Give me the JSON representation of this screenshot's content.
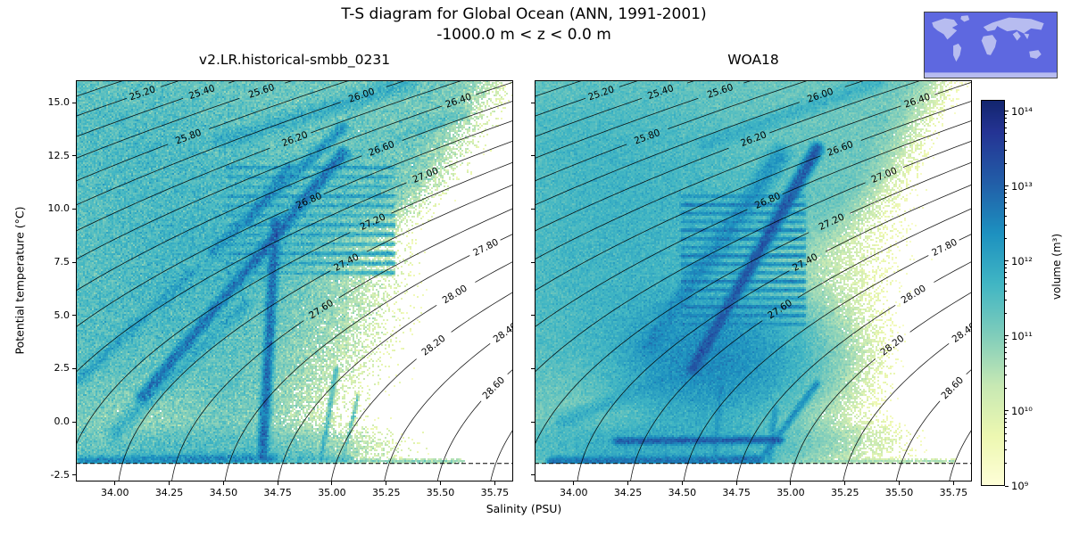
{
  "figure": {
    "title": "T-S diagram for Global Ocean (ANN, 1991-2001)",
    "subtitle": "-1000.0 m < z < 0.0 m"
  },
  "chart_data": {
    "type": "heatmap",
    "subtype": "T-S (temperature-salinity) volumetric census: 2D histogram of ocean volume in salinity/temperature space on a log color scale, with potential-density (sigma-0) contours and a freezing-point dashed line",
    "xlabel": "Salinity (PSU)",
    "ylabel": "Potential temperature (°C)",
    "xlim": [
      33.82,
      35.835
    ],
    "ylim": [
      -2.8,
      16.05
    ],
    "xticks": [
      34.0,
      34.25,
      34.5,
      34.75,
      35.0,
      35.25,
      35.5,
      35.75
    ],
    "xtick_labels": [
      "34.00",
      "34.25",
      "34.50",
      "34.75",
      "35.00",
      "35.25",
      "35.50",
      "35.75"
    ],
    "yticks": [
      -2.5,
      0.0,
      2.5,
      5.0,
      7.5,
      10.0,
      12.5,
      15.0
    ],
    "ytick_labels": [
      "-2.5",
      "0.0",
      "2.5",
      "5.0",
      "7.5",
      "10.0",
      "12.5",
      "15.0"
    ],
    "freezing_line_T": -1.95,
    "density_contours": {
      "levels_min": 24.4,
      "levels_max": 29.0,
      "step": 0.2,
      "labels": [
        {
          "label": "25.20",
          "level": 25.2,
          "t": 15.45
        },
        {
          "label": "25.40",
          "level": 25.4,
          "t": 15.5
        },
        {
          "label": "25.60",
          "level": 25.6,
          "t": 15.55
        },
        {
          "label": "25.80",
          "level": 25.8,
          "t": 13.4
        },
        {
          "label": "26.00",
          "level": 26.0,
          "t": 15.35
        },
        {
          "label": "26.20",
          "level": 26.2,
          "t": 13.3
        },
        {
          "label": "26.40",
          "level": 26.4,
          "t": 15.1
        },
        {
          "label": "26.60",
          "level": 26.6,
          "t": 12.85
        },
        {
          "label": "26.80",
          "level": 26.8,
          "t": 10.4
        },
        {
          "label": "27.00",
          "level": 27.0,
          "t": 11.6
        },
        {
          "label": "27.20",
          "level": 27.2,
          "t": 9.4
        },
        {
          "label": "27.40",
          "level": 27.4,
          "t": 7.5
        },
        {
          "label": "27.60",
          "level": 27.6,
          "t": 5.3
        },
        {
          "label": "27.80",
          "level": 27.8,
          "t": 8.2
        },
        {
          "label": "28.00",
          "level": 28.0,
          "t": 6.0
        },
        {
          "label": "28.20",
          "level": 28.2,
          "t": 3.6
        },
        {
          "label": "28.40",
          "level": 28.4,
          "t": 4.2
        },
        {
          "label": "28.60",
          "level": 28.6,
          "t": 1.6
        }
      ]
    },
    "colorbar": {
      "label": "volume (m³)",
      "scale": "log",
      "tick_labels": [
        "10⁹",
        "10¹⁰",
        "10¹¹",
        "10¹²",
        "10¹³",
        "10¹⁴"
      ],
      "log_min": 9,
      "log_max": 14.15,
      "colormap": [
        "#ffffd9",
        "#edf8b1",
        "#c7e9b4",
        "#7fcdbb",
        "#41b6c4",
        "#1d91c0",
        "#225ea8",
        "#253494",
        "#081d58"
      ]
    },
    "inset_map": {
      "ocean": "#5e68e0",
      "land": "#b7bcf0"
    },
    "panels": [
      {
        "title": "v2.LR.historical-smbb_0231",
        "seed": 7,
        "noise": 1.1,
        "sparsity": 2.2,
        "edge": {
          "e0": 34.62,
          "slope": 0.055,
          "soft": 0.22
        },
        "blobs": [
          {
            "s": 34.25,
            "t": 10.5,
            "rs": 0.5,
            "rt": 4.5,
            "a": 11.25
          },
          {
            "s": 34.15,
            "t": 4.0,
            "rs": 0.55,
            "rt": 3.5,
            "a": 11.2
          },
          {
            "s": 34.55,
            "t": 7.5,
            "rs": 0.38,
            "rt": 3.5,
            "a": 11.35
          },
          {
            "s": 34.0,
            "t": 13.5,
            "rs": 0.45,
            "rt": 2.2,
            "a": 11.0
          },
          {
            "s": 34.35,
            "t": -1.2,
            "rs": 0.5,
            "rt": 0.8,
            "a": 11.45
          }
        ],
        "ridges": [
          {
            "s1": 34.13,
            "t1": 1.2,
            "s2": 35.05,
            "t2": 12.6,
            "a": 12.7,
            "w": 5
          },
          {
            "s1": 34.68,
            "t1": -1.6,
            "s2": 34.74,
            "t2": 9.4,
            "a": 12.8,
            "w": 4
          },
          {
            "s1": 34.45,
            "t1": 8.0,
            "s2": 35.05,
            "t2": 13.8,
            "a": 12.2,
            "w": 5
          },
          {
            "s1": 33.84,
            "t1": 2.0,
            "s2": 34.35,
            "t2": 7.0,
            "a": 11.9,
            "w": 5
          },
          {
            "s1": 34.0,
            "t1": -0.5,
            "s2": 34.6,
            "t2": 5.5,
            "a": 11.7,
            "w": 7
          },
          {
            "s1": 33.85,
            "t1": -1.85,
            "s2": 34.72,
            "t2": -1.7,
            "a": 12.4,
            "w": 4
          },
          {
            "s1": 34.72,
            "t1": -1.8,
            "s2": 35.08,
            "t2": -1.75,
            "a": 11.5,
            "w": 3
          },
          {
            "s1": 34.5,
            "t1": 13.2,
            "s2": 35.35,
            "t2": 15.9,
            "a": 11.7,
            "w": 8
          },
          {
            "s1": 35.0,
            "t1": 12.0,
            "s2": 35.6,
            "t2": 14.5,
            "a": 11.1,
            "w": 6
          },
          {
            "s1": 34.62,
            "t1": 9.5,
            "s2": 34.8,
            "t2": 12.0,
            "a": 12.3,
            "w": 4
          },
          {
            "s1": 34.95,
            "t1": -1.8,
            "s2": 35.02,
            "t2": 2.5,
            "a": 11.5,
            "w": 2
          },
          {
            "s1": 35.05,
            "t1": -1.8,
            "s2": 35.12,
            "t2": 1.2,
            "a": 11.2,
            "w": 1.6
          },
          {
            "s1": 35.1,
            "t1": -1.85,
            "s2": 35.6,
            "t2": -1.85,
            "a": 10.9,
            "w": 2
          }
        ],
        "striations": {
          "t0": 7.0,
          "t1": 12.0,
          "step": 0.45,
          "s0": 34.52,
          "s1": 35.28,
          "a": 11.9,
          "w": 1.8
        }
      },
      {
        "title": "WOA18",
        "seed": 99,
        "noise": 0.7,
        "sparsity": 1.2,
        "edge": {
          "e0": 34.68,
          "slope": 0.05,
          "soft": 0.18
        },
        "blobs": [
          {
            "s": 34.3,
            "t": 10.0,
            "rs": 0.55,
            "rt": 4.0,
            "a": 11.5
          },
          {
            "s": 34.62,
            "t": 3.0,
            "rs": 0.32,
            "rt": 2.2,
            "a": 12.4
          },
          {
            "s": 34.2,
            "t": 5.0,
            "rs": 0.55,
            "rt": 4.0,
            "a": 11.35
          },
          {
            "s": 34.4,
            "t": -1.0,
            "rs": 0.5,
            "rt": 0.9,
            "a": 11.9
          },
          {
            "s": 34.05,
            "t": 13.5,
            "rs": 0.5,
            "rt": 2.5,
            "a": 11.15
          }
        ],
        "ridges": [
          {
            "s1": 34.55,
            "t1": 2.5,
            "s2": 35.12,
            "t2": 12.8,
            "a": 13.1,
            "w": 5
          },
          {
            "s1": 34.34,
            "t1": 3.5,
            "s2": 34.95,
            "t2": 12.5,
            "a": 12.2,
            "w": 9
          },
          {
            "s1": 34.2,
            "t1": -0.9,
            "s2": 34.95,
            "t2": -0.85,
            "a": 13.0,
            "w": 3
          },
          {
            "s1": 33.9,
            "t1": -1.85,
            "s2": 34.85,
            "t2": -1.78,
            "a": 12.7,
            "w": 4
          },
          {
            "s1": 34.86,
            "t1": -1.8,
            "s2": 35.12,
            "t2": 1.8,
            "a": 12.3,
            "w": 3
          },
          {
            "s1": 34.9,
            "t1": -1.8,
            "s2": 34.93,
            "t2": 0.6,
            "a": 12.1,
            "w": 3
          },
          {
            "s1": 34.6,
            "t1": 13.0,
            "s2": 35.4,
            "t2": 16.0,
            "a": 11.6,
            "w": 8
          },
          {
            "s1": 33.95,
            "t1": 0.0,
            "s2": 34.55,
            "t2": 2.5,
            "a": 11.7,
            "w": 8
          },
          {
            "s1": 34.65,
            "t1": -1.5,
            "s2": 34.68,
            "t2": 2.0,
            "a": 12.0,
            "w": 3
          },
          {
            "s1": 35.0,
            "t1": -1.85,
            "s2": 35.75,
            "t2": -1.85,
            "a": 10.6,
            "w": 2
          }
        ],
        "striations": {
          "t0": 4.6,
          "t1": 10.6,
          "step": 0.4,
          "s0": 34.5,
          "s1": 35.06,
          "a": 12.4,
          "w": 1.8
        }
      }
    ]
  }
}
